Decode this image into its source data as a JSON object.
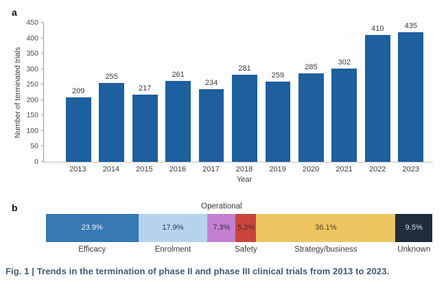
{
  "figure": {
    "panel_a_label": "a",
    "panel_b_label": "b",
    "caption": "Fig. 1 | Trends in the termination of phase II and phase III clinical trials from 2013 to 2023."
  },
  "chart_data": [
    {
      "type": "bar",
      "panel": "a",
      "xlabel": "Year",
      "ylabel": "Number of terminated trials",
      "categories": [
        "2013",
        "2014",
        "2015",
        "2016",
        "2017",
        "2018",
        "2019",
        "2020",
        "2021",
        "2022",
        "2023"
      ],
      "values": [
        209,
        255,
        217,
        261,
        234,
        281,
        259,
        285,
        302,
        410,
        435
      ],
      "ylim": [
        0,
        450
      ],
      "ytick_step": 50,
      "bar_color": "#1e5f9e",
      "grid": false,
      "legend": "none"
    },
    {
      "type": "bar",
      "panel": "b",
      "orientation": "horizontal-stacked",
      "segments": [
        {
          "label": "Efficacy",
          "value_pct": 23.9,
          "display": "23.9%",
          "color": "#3778b5",
          "text_color": "#eef4fa",
          "label_position": "below"
        },
        {
          "label": "Enrolment",
          "value_pct": 17.9,
          "display": "17.9%",
          "color": "#b5d4ec",
          "text_color": "#2c3b4e",
          "label_position": "below"
        },
        {
          "label": "Operational",
          "value_pct": 7.3,
          "display": "7.3%",
          "color": "#c47fd2",
          "text_color": "#39294d",
          "label_position": "above"
        },
        {
          "label": "Safety",
          "value_pct": 5.3,
          "display": "5.3%",
          "color": "#c8443d",
          "text_color": "#5c272c",
          "label_position": "below"
        },
        {
          "label": "Strategy/business",
          "value_pct": 36.1,
          "display": "36.1%",
          "color": "#ecc55e",
          "text_color": "#4d3e23",
          "label_position": "below"
        },
        {
          "label": "Unknown",
          "value_pct": 9.5,
          "display": "9.5%",
          "color": "#202b3c",
          "text_color": "#d8dee5",
          "label_position": "below"
        }
      ]
    }
  ]
}
